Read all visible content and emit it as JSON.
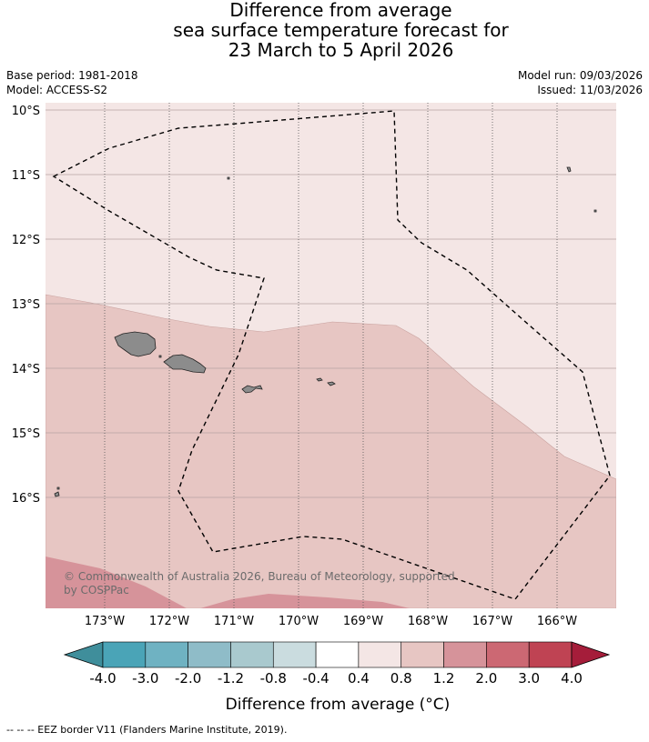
{
  "title": {
    "line1": "Difference from average",
    "line2": "sea surface temperature forecast for",
    "line3": "23 March to 5 April 2026"
  },
  "meta": {
    "base_period": "Base period: 1981-2018",
    "model": "Model: ACCESS-S2",
    "model_run": "Model run: 09/03/2026",
    "issued": "Issued: 11/03/2026"
  },
  "map": {
    "lat_labels": [
      "10°S",
      "11°S",
      "12°S",
      "13°S",
      "14°S",
      "15°S",
      "16°S"
    ],
    "lon_labels": [
      "173°W",
      "172°W",
      "171°W",
      "170°W",
      "169°W",
      "168°W",
      "167°W",
      "166°W"
    ],
    "copyright_line1": "© Commonwealth of Australia 2026, Bureau of Meteorology, supported",
    "copyright_line2": "by COSPPac"
  },
  "colorbar": {
    "labels": [
      "-4.0",
      "-3.0",
      "-2.0",
      "-1.2",
      "-0.8",
      "-0.4",
      "0.4",
      "0.8",
      "1.2",
      "2.0",
      "3.0",
      "4.0"
    ],
    "colors": [
      "#3f8e9b",
      "#4aa4b7",
      "#6fb2c2",
      "#8fbcc8",
      "#a9c9ce",
      "#cadcdf",
      "#ffffff",
      "#f4e6e5",
      "#e7c6c3",
      "#d6939a",
      "#cc6873",
      "#bf4353",
      "#a51d3a"
    ],
    "axis_label": "Difference from average (°C)"
  },
  "footer": {
    "legend": "-- -- -- EEZ border V11 (Flanders Marine Institute, 2019)."
  }
}
